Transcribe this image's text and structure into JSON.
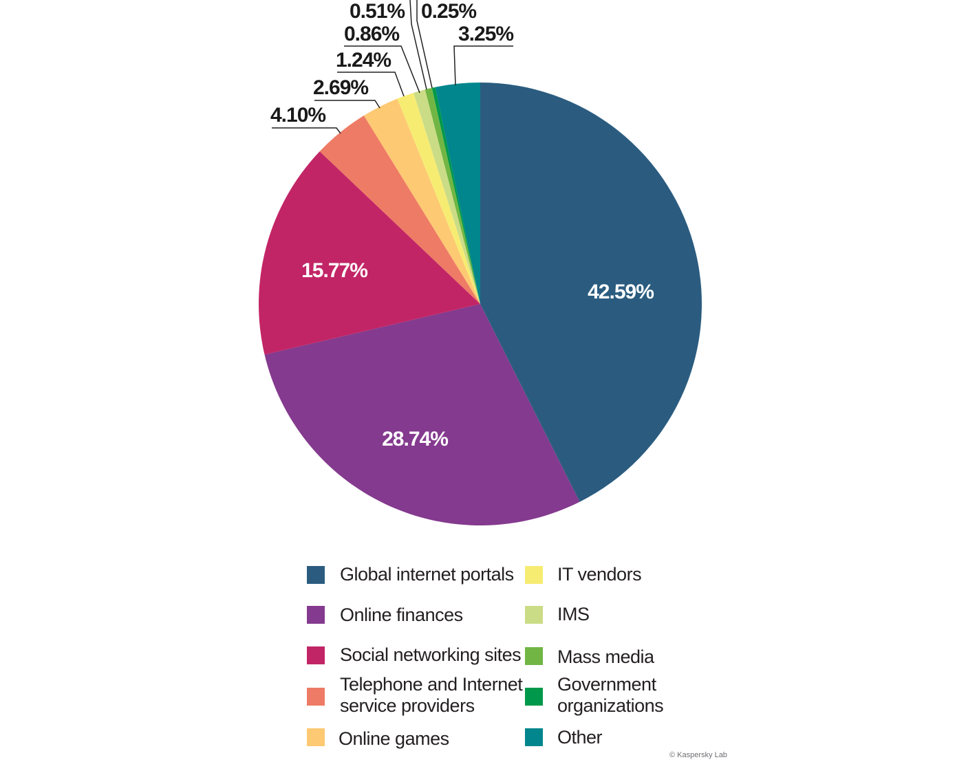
{
  "chart_data": {
    "type": "pie",
    "unit": "%",
    "slices": [
      {
        "label": "Global internet portals",
        "value": 42.59,
        "display": "42.59%",
        "color": "#2b5c7f"
      },
      {
        "label": "Online finances",
        "value": 28.74,
        "display": "28.74%",
        "color": "#843a8e"
      },
      {
        "label": "Social networking sites",
        "value": 15.77,
        "display": "15.77%",
        "color": "#c22566"
      },
      {
        "label": "Telephone and Internet\nservice providers",
        "value": 4.1,
        "display": "4.10%",
        "color": "#ee7b65"
      },
      {
        "label": "Online games",
        "value": 2.69,
        "display": "2.69%",
        "color": "#fdc973"
      },
      {
        "label": "IT vendors",
        "value": 1.24,
        "display": "1.24%",
        "color": "#f7ec72"
      },
      {
        "label": "IMS",
        "value": 0.86,
        "display": "0.86%",
        "color": "#cbdc86"
      },
      {
        "label": "Mass media",
        "value": 0.51,
        "display": "0.51%",
        "color": "#71b644"
      },
      {
        "label": "Government\norganizations",
        "value": 0.25,
        "display": "0.25%",
        "color": "#00984a"
      },
      {
        "label": "Other",
        "value": 3.25,
        "display": "3.25%",
        "color": "#00868c"
      }
    ],
    "legend_placement": "bottom"
  },
  "footer": {
    "copyright": "© Kaspersky Lab"
  }
}
